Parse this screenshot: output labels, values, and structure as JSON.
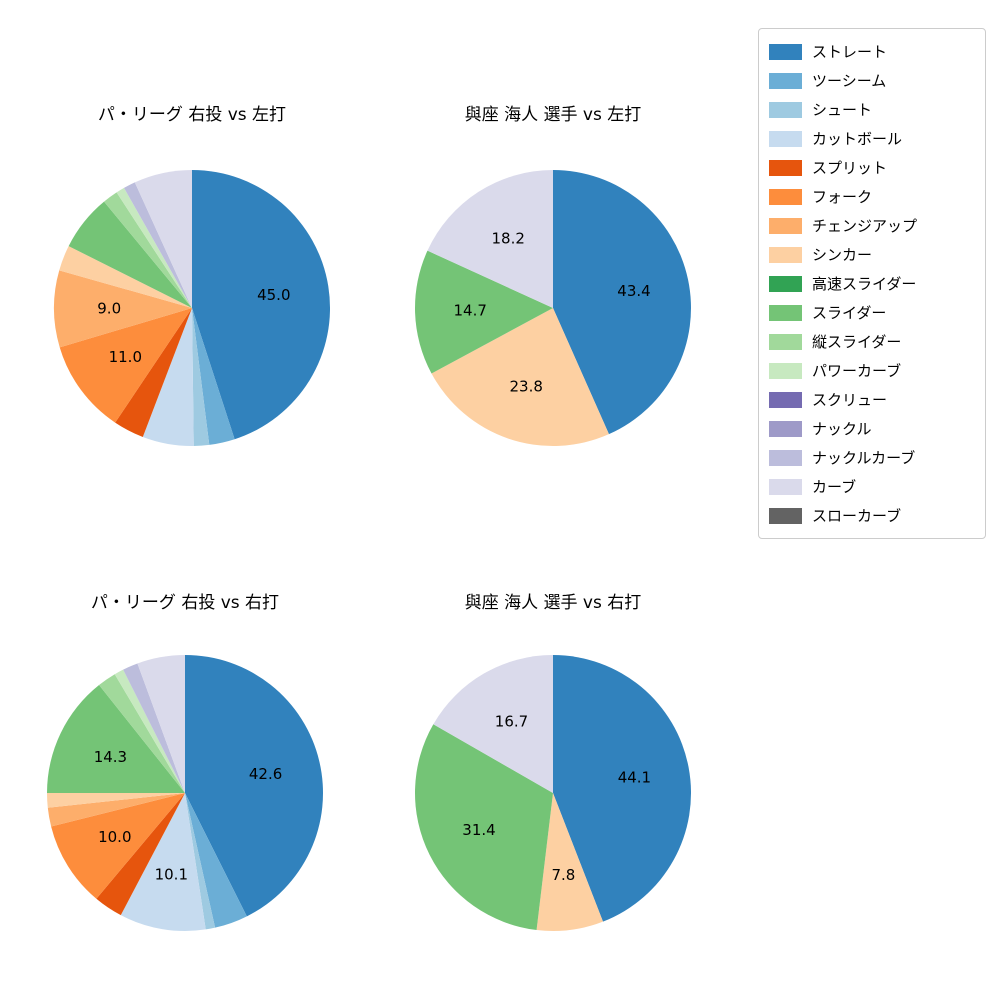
{
  "figure": {
    "background": "#ffffff",
    "text_color": "#000000"
  },
  "legend": {
    "position": "top-right",
    "items": [
      {
        "label": "ストレート",
        "color": "#3182bd"
      },
      {
        "label": "ツーシーム",
        "color": "#6baed6"
      },
      {
        "label": "シュート",
        "color": "#9ecae1"
      },
      {
        "label": "カットボール",
        "color": "#c6dbef"
      },
      {
        "label": "スプリット",
        "color": "#e6550d"
      },
      {
        "label": "フォーク",
        "color": "#fd8d3c"
      },
      {
        "label": "チェンジアップ",
        "color": "#fdae6b"
      },
      {
        "label": "シンカー",
        "color": "#fdd0a2"
      },
      {
        "label": "高速スライダー",
        "color": "#31a354"
      },
      {
        "label": "スライダー",
        "color": "#74c476"
      },
      {
        "label": "縦スライダー",
        "color": "#a1d99b"
      },
      {
        "label": "パワーカーブ",
        "color": "#c7e9c0"
      },
      {
        "label": "スクリュー",
        "color": "#756bb1"
      },
      {
        "label": "ナックル",
        "color": "#9e9ac8"
      },
      {
        "label": "ナックルカーブ",
        "color": "#bcbddc"
      },
      {
        "label": "カーブ",
        "color": "#dadaeb"
      },
      {
        "label": "スローカーブ",
        "color": "#636363"
      }
    ]
  },
  "chart_data": [
    {
      "type": "pie",
      "title": "パ・リーグ 右投 vs 左打",
      "start_angle_deg": 90,
      "direction": "clockwise",
      "value_label_distance": 0.6,
      "slices": [
        {
          "label": "ストレート",
          "value": 45.0,
          "show_value": true
        },
        {
          "label": "ツーシーム",
          "value": 3.0,
          "show_value": false
        },
        {
          "label": "シュート",
          "value": 1.8,
          "show_value": false
        },
        {
          "label": "カットボール",
          "value": 6.0,
          "show_value": false
        },
        {
          "label": "スプリット",
          "value": 3.6,
          "show_value": false
        },
        {
          "label": "フォーク",
          "value": 11.0,
          "show_value": true
        },
        {
          "label": "チェンジアップ",
          "value": 9.0,
          "show_value": true
        },
        {
          "label": "シンカー",
          "value": 3.0,
          "show_value": false
        },
        {
          "label": "スライダー",
          "value": 6.6,
          "show_value": false
        },
        {
          "label": "縦スライダー",
          "value": 1.8,
          "show_value": false
        },
        {
          "label": "パワーカーブ",
          "value": 1.0,
          "show_value": false
        },
        {
          "label": "ナックルカーブ",
          "value": 1.4,
          "show_value": false
        },
        {
          "label": "カーブ",
          "value": 6.8,
          "show_value": false
        }
      ]
    },
    {
      "type": "pie",
      "title": "與座 海人 選手 vs 左打",
      "start_angle_deg": 90,
      "direction": "clockwise",
      "value_label_distance": 0.6,
      "slices": [
        {
          "label": "ストレート",
          "value": 43.4,
          "show_value": true
        },
        {
          "label": "シンカー",
          "value": 23.8,
          "show_value": true
        },
        {
          "label": "スライダー",
          "value": 14.7,
          "show_value": true
        },
        {
          "label": "カーブ",
          "value": 18.2,
          "show_value": true
        }
      ]
    },
    {
      "type": "pie",
      "title": "パ・リーグ 右投 vs 右打",
      "start_angle_deg": 90,
      "direction": "clockwise",
      "value_label_distance": 0.6,
      "slices": [
        {
          "label": "ストレート",
          "value": 42.6,
          "show_value": true
        },
        {
          "label": "ツーシーム",
          "value": 3.9,
          "show_value": false
        },
        {
          "label": "シュート",
          "value": 1.1,
          "show_value": false
        },
        {
          "label": "カットボール",
          "value": 10.1,
          "show_value": true
        },
        {
          "label": "スプリット",
          "value": 3.4,
          "show_value": false
        },
        {
          "label": "フォーク",
          "value": 10.0,
          "show_value": true
        },
        {
          "label": "チェンジアップ",
          "value": 2.2,
          "show_value": false
        },
        {
          "label": "シンカー",
          "value": 1.7,
          "show_value": false
        },
        {
          "label": "スライダー",
          "value": 14.3,
          "show_value": true
        },
        {
          "label": "縦スライダー",
          "value": 2.2,
          "show_value": false
        },
        {
          "label": "パワーカーブ",
          "value": 1.1,
          "show_value": false
        },
        {
          "label": "ナックルカーブ",
          "value": 1.8,
          "show_value": false
        },
        {
          "label": "カーブ",
          "value": 5.6,
          "show_value": false
        }
      ]
    },
    {
      "type": "pie",
      "title": "與座 海人 選手 vs 右打",
      "start_angle_deg": 90,
      "direction": "clockwise",
      "value_label_distance": 0.6,
      "slices": [
        {
          "label": "ストレート",
          "value": 44.1,
          "show_value": true
        },
        {
          "label": "シンカー",
          "value": 7.8,
          "show_value": true
        },
        {
          "label": "スライダー",
          "value": 31.4,
          "show_value": true
        },
        {
          "label": "カーブ",
          "value": 16.7,
          "show_value": true
        }
      ]
    }
  ]
}
